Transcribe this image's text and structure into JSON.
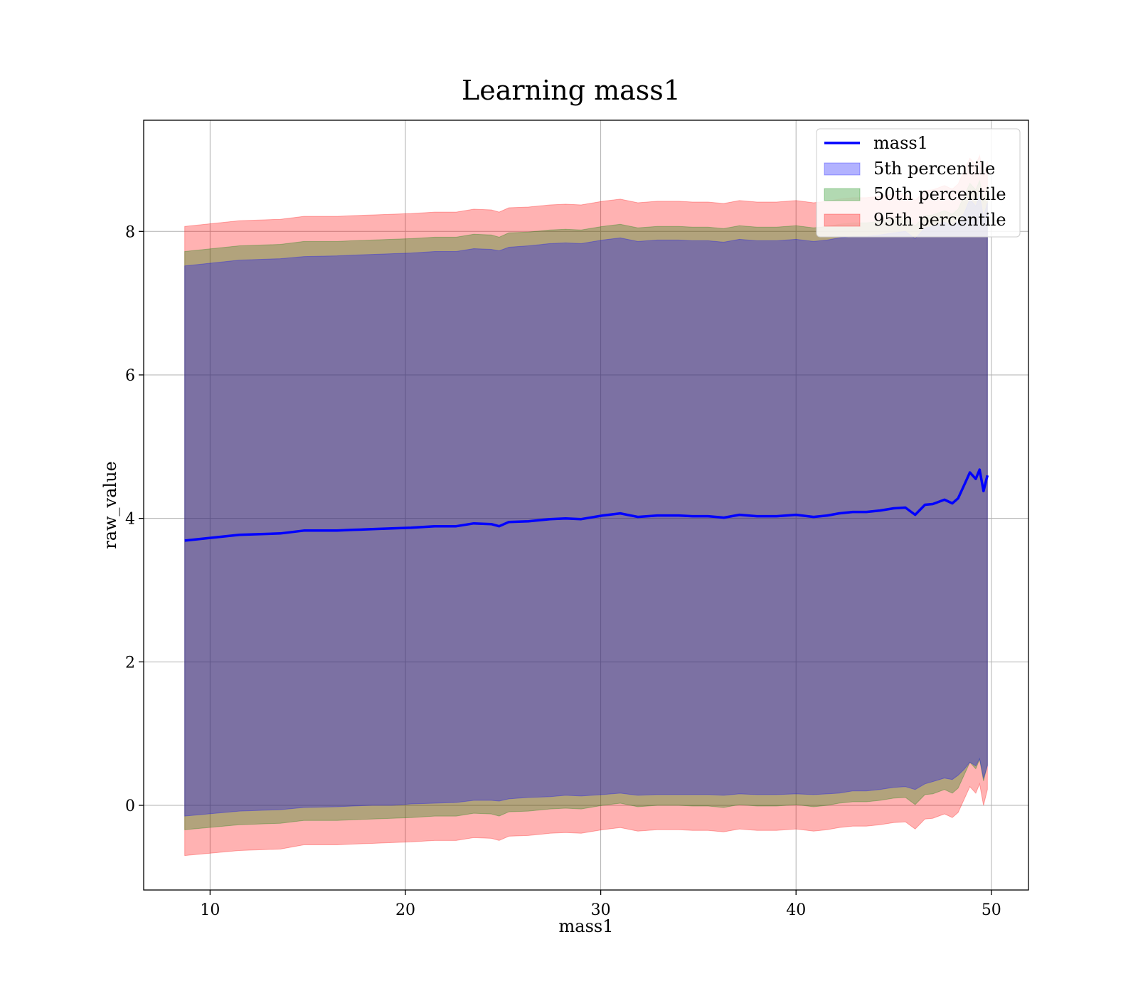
{
  "chart_data": {
    "type": "area",
    "title": "Learning mass1",
    "xlabel": "mass1",
    "ylabel": "raw_value",
    "xlim": [
      6.6,
      51.9
    ],
    "ylim": [
      -1.18,
      9.55
    ],
    "x_ticks": [
      10,
      20,
      30,
      40,
      50
    ],
    "y_ticks": [
      0,
      2,
      4,
      6,
      8
    ],
    "grid": true,
    "legend_position": "top-right",
    "x": [
      8.7,
      11.5,
      13.6,
      14.8,
      16.5,
      17.3,
      18.3,
      19.3,
      20.3,
      21.5,
      22.6,
      23.5,
      24.4,
      24.8,
      25.3,
      26.3,
      27.4,
      28.2,
      29.0,
      30.1,
      31.0,
      31.9,
      32.9,
      34.0,
      34.7,
      35.5,
      36.3,
      37.1,
      38.0,
      39.0,
      40.0,
      40.9,
      41.6,
      42.2,
      42.9,
      43.6,
      44.3,
      45.0,
      45.6,
      46.1,
      46.6,
      47.0,
      47.6,
      48.0,
      48.3,
      48.6,
      48.9,
      49.2,
      49.4,
      49.6,
      49.8
    ],
    "series": [
      {
        "name": "mass1",
        "kind": "line",
        "color": "#0000ff",
        "values": [
          3.69,
          3.77,
          3.79,
          3.83,
          3.83,
          3.84,
          3.85,
          3.86,
          3.87,
          3.89,
          3.89,
          3.93,
          3.92,
          3.89,
          3.95,
          3.96,
          3.99,
          4.0,
          3.99,
          4.04,
          4.07,
          4.02,
          4.04,
          4.04,
          4.03,
          4.03,
          4.01,
          4.05,
          4.03,
          4.03,
          4.05,
          4.02,
          4.04,
          4.07,
          4.09,
          4.09,
          4.11,
          4.14,
          4.15,
          4.05,
          4.19,
          4.2,
          4.26,
          4.21,
          4.28,
          4.46,
          4.64,
          4.55,
          4.68,
          4.38,
          4.6
        ]
      },
      {
        "name": "5th percentile",
        "kind": "band",
        "color": "#0000ff",
        "lower": [
          -0.15,
          -0.08,
          -0.06,
          -0.03,
          -0.02,
          -0.01,
          0.0,
          0.0,
          0.02,
          0.03,
          0.04,
          0.07,
          0.07,
          0.06,
          0.09,
          0.11,
          0.12,
          0.14,
          0.13,
          0.15,
          0.17,
          0.14,
          0.15,
          0.15,
          0.15,
          0.15,
          0.14,
          0.16,
          0.15,
          0.15,
          0.16,
          0.15,
          0.16,
          0.17,
          0.2,
          0.2,
          0.22,
          0.25,
          0.26,
          0.22,
          0.3,
          0.33,
          0.38,
          0.36,
          0.42,
          0.5,
          0.6,
          0.55,
          0.65,
          0.38,
          0.55
        ],
        "upper": [
          7.52,
          7.6,
          7.62,
          7.65,
          7.66,
          7.67,
          7.68,
          7.69,
          7.7,
          7.72,
          7.72,
          7.76,
          7.75,
          7.73,
          7.78,
          7.8,
          7.83,
          7.84,
          7.83,
          7.88,
          7.91,
          7.86,
          7.88,
          7.88,
          7.87,
          7.87,
          7.85,
          7.89,
          7.87,
          7.87,
          7.89,
          7.86,
          7.88,
          7.91,
          7.93,
          7.93,
          7.95,
          7.98,
          8.0,
          7.9,
          8.05,
          8.07,
          8.13,
          8.08,
          8.15,
          8.25,
          8.45,
          8.35,
          8.5,
          8.2,
          8.4
        ]
      },
      {
        "name": "50th percentile",
        "kind": "band",
        "color": "#008000",
        "lower": [
          -0.34,
          -0.27,
          -0.25,
          -0.21,
          -0.21,
          -0.2,
          -0.19,
          -0.18,
          -0.17,
          -0.15,
          -0.15,
          -0.11,
          -0.12,
          -0.15,
          -0.09,
          -0.08,
          -0.05,
          -0.04,
          -0.05,
          0.0,
          0.03,
          -0.02,
          0.0,
          0.0,
          -0.01,
          -0.01,
          -0.03,
          0.01,
          -0.01,
          -0.01,
          0.01,
          -0.02,
          0.0,
          0.03,
          0.05,
          0.05,
          0.07,
          0.1,
          0.11,
          0.01,
          0.15,
          0.16,
          0.22,
          0.17,
          0.24,
          0.42,
          0.6,
          0.51,
          0.64,
          0.34,
          0.56
        ],
        "upper": [
          7.72,
          7.8,
          7.82,
          7.86,
          7.86,
          7.87,
          7.88,
          7.89,
          7.9,
          7.92,
          7.92,
          7.96,
          7.95,
          7.92,
          7.98,
          7.99,
          8.02,
          8.03,
          8.02,
          8.07,
          8.1,
          8.05,
          8.07,
          8.07,
          8.06,
          8.06,
          8.04,
          8.08,
          8.06,
          8.06,
          8.08,
          8.05,
          8.07,
          8.1,
          8.12,
          8.12,
          8.14,
          8.17,
          8.18,
          8.08,
          8.22,
          8.23,
          8.29,
          8.24,
          8.31,
          8.49,
          8.67,
          8.58,
          8.71,
          8.41,
          8.63
        ]
      },
      {
        "name": "95th percentile",
        "kind": "band",
        "color": "#ff0000",
        "lower": [
          -0.7,
          -0.63,
          -0.61,
          -0.55,
          -0.55,
          -0.54,
          -0.53,
          -0.52,
          -0.51,
          -0.49,
          -0.49,
          -0.45,
          -0.46,
          -0.49,
          -0.43,
          -0.42,
          -0.39,
          -0.38,
          -0.39,
          -0.34,
          -0.31,
          -0.36,
          -0.34,
          -0.34,
          -0.35,
          -0.35,
          -0.37,
          -0.33,
          -0.35,
          -0.35,
          -0.33,
          -0.36,
          -0.34,
          -0.31,
          -0.29,
          -0.29,
          -0.27,
          -0.24,
          -0.23,
          -0.33,
          -0.19,
          -0.18,
          -0.12,
          -0.17,
          -0.1,
          0.08,
          0.26,
          0.17,
          0.3,
          0.0,
          0.22
        ],
        "upper": [
          8.07,
          8.15,
          8.17,
          8.21,
          8.21,
          8.22,
          8.23,
          8.24,
          8.25,
          8.27,
          8.27,
          8.31,
          8.3,
          8.27,
          8.33,
          8.34,
          8.37,
          8.38,
          8.37,
          8.42,
          8.45,
          8.4,
          8.42,
          8.42,
          8.41,
          8.41,
          8.39,
          8.43,
          8.41,
          8.41,
          8.43,
          8.4,
          8.42,
          8.45,
          8.47,
          8.47,
          8.49,
          8.52,
          8.53,
          8.43,
          8.57,
          8.58,
          8.64,
          8.59,
          8.66,
          8.84,
          9.02,
          8.93,
          9.06,
          8.76,
          8.98
        ]
      }
    ]
  }
}
